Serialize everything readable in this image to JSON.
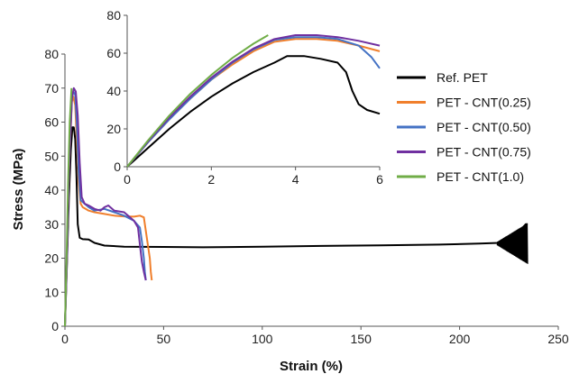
{
  "chart_data": [
    {
      "type": "line",
      "title": "",
      "xlabel": "Strain (%)",
      "ylabel": "Stress (MPa)",
      "xlim": [
        0,
        250
      ],
      "ylim": [
        0,
        80
      ],
      "xticks": [
        "0",
        "50",
        "100",
        "150",
        "200",
        "250"
      ],
      "yticks": [
        "0",
        "10",
        "20",
        "30",
        "40",
        "50",
        "60",
        "70",
        "80"
      ],
      "grid": false,
      "legend_position": "right",
      "series": [
        {
          "name": "Ref. PET",
          "color": "#000000",
          "x": [
            0,
            1,
            2,
            3,
            3.8,
            4.5,
            5.2,
            5.8,
            6.5,
            7.5,
            9,
            12,
            15,
            20,
            30,
            50,
            70,
            100,
            130,
            160,
            190,
            210,
            220,
            225,
            228,
            230,
            232,
            233.5,
            234.5
          ],
          "y": [
            0,
            18,
            38,
            52,
            58.5,
            58.5,
            55,
            45,
            30,
            26,
            25.6,
            25.5,
            24.5,
            23.7,
            23.4,
            23.3,
            23.2,
            23.4,
            23.6,
            23.8,
            24,
            24.3,
            24.5,
            25,
            26,
            27.5,
            29,
            30,
            30
          ]
        },
        {
          "name": "PET - CNT(0.25)",
          "color": "#f07f2c",
          "x": [
            0,
            1,
            2,
            3.5,
            4.2,
            5.2,
            6,
            7,
            8,
            9,
            12,
            15,
            20,
            25,
            30,
            35,
            38,
            40,
            41,
            42,
            43,
            43.5,
            44
          ],
          "y": [
            0,
            20,
            45,
            66,
            67.5,
            65,
            55,
            42,
            36,
            35,
            34,
            33.5,
            33,
            32.5,
            32.3,
            32.2,
            32.5,
            32,
            28,
            24,
            20,
            16,
            13.5
          ]
        },
        {
          "name": "PET - CNT(0.50)",
          "color": "#4472c4",
          "x": [
            0,
            1,
            2,
            3.5,
            4.3,
            5.2,
            6,
            7,
            8,
            10,
            12,
            15,
            20,
            25,
            30,
            35,
            38,
            39,
            40,
            40.5,
            41
          ],
          "y": [
            0,
            20,
            46,
            67,
            69,
            68,
            60,
            45,
            37,
            36,
            35,
            34,
            34.5,
            33.5,
            32.5,
            31,
            29,
            25,
            20,
            16,
            13.5
          ]
        },
        {
          "name": "PET - CNT(0.75)",
          "color": "#7030a0",
          "x": [
            0,
            1,
            2,
            3.5,
            4.5,
            5.5,
            6.5,
            7.5,
            8.5,
            10,
            12,
            15,
            18,
            20,
            22,
            25,
            30,
            35,
            37,
            38,
            39,
            40,
            41
          ],
          "y": [
            0,
            20,
            46,
            67,
            70,
            69,
            62,
            48,
            38,
            36,
            35.5,
            34.5,
            34,
            35,
            35.5,
            34,
            33.5,
            31,
            29,
            24,
            19,
            16,
            13.5
          ]
        },
        {
          "name": "PET - CNT(1.0)",
          "color": "#70ad47",
          "x": [
            0,
            0.8,
            1.6,
            2.4,
            3.35
          ],
          "y": [
            0,
            20,
            42,
            60,
            70
          ]
        }
      ]
    },
    {
      "type": "line",
      "title": "",
      "xlabel": "",
      "ylabel": "",
      "xlim": [
        0,
        6
      ],
      "ylim": [
        0,
        80
      ],
      "xticks": [
        "0",
        "2",
        "4",
        "6"
      ],
      "yticks": [
        "0",
        "20",
        "40",
        "60",
        "80"
      ],
      "grid": false,
      "legend_position": "none",
      "series": [
        {
          "color": "#000000",
          "x": [
            0,
            0.5,
            1,
            1.5,
            2,
            2.5,
            3,
            3.5,
            3.8,
            4.2,
            4.6,
            5,
            5.2,
            5.35,
            5.5,
            5.7,
            6
          ],
          "y": [
            0,
            10,
            20,
            29,
            37,
            44,
            50,
            55,
            58.5,
            58.5,
            57,
            55,
            50,
            40,
            33,
            30,
            28
          ]
        },
        {
          "color": "#f07f2c",
          "x": [
            0,
            0.5,
            1,
            1.5,
            2,
            2.5,
            3,
            3.5,
            4,
            4.5,
            5,
            5.5,
            6
          ],
          "y": [
            0,
            13,
            25,
            36,
            46,
            54,
            61,
            66,
            67.5,
            67.5,
            66.5,
            64,
            61
          ]
        },
        {
          "color": "#4472c4",
          "x": [
            0,
            0.5,
            1,
            1.5,
            2,
            2.5,
            3,
            3.5,
            4,
            4.5,
            5,
            5.5,
            5.8,
            6
          ],
          "y": [
            0,
            13,
            25,
            36,
            46,
            55,
            62,
            67,
            68.5,
            68.5,
            67.5,
            64,
            58,
            52
          ]
        },
        {
          "color": "#7030a0",
          "x": [
            0,
            0.5,
            1,
            1.5,
            2,
            2.5,
            3,
            3.5,
            4,
            4.5,
            5,
            5.5,
            6
          ],
          "y": [
            0,
            13.5,
            26,
            37,
            47,
            55.5,
            62.5,
            67.5,
            69.5,
            69.5,
            68.5,
            66.5,
            64
          ]
        },
        {
          "color": "#70ad47",
          "x": [
            0,
            0.5,
            1,
            1.5,
            2,
            2.5,
            3,
            3.35
          ],
          "y": [
            0,
            14,
            27,
            38.5,
            48.5,
            57.5,
            65,
            69.5
          ]
        }
      ]
    }
  ]
}
